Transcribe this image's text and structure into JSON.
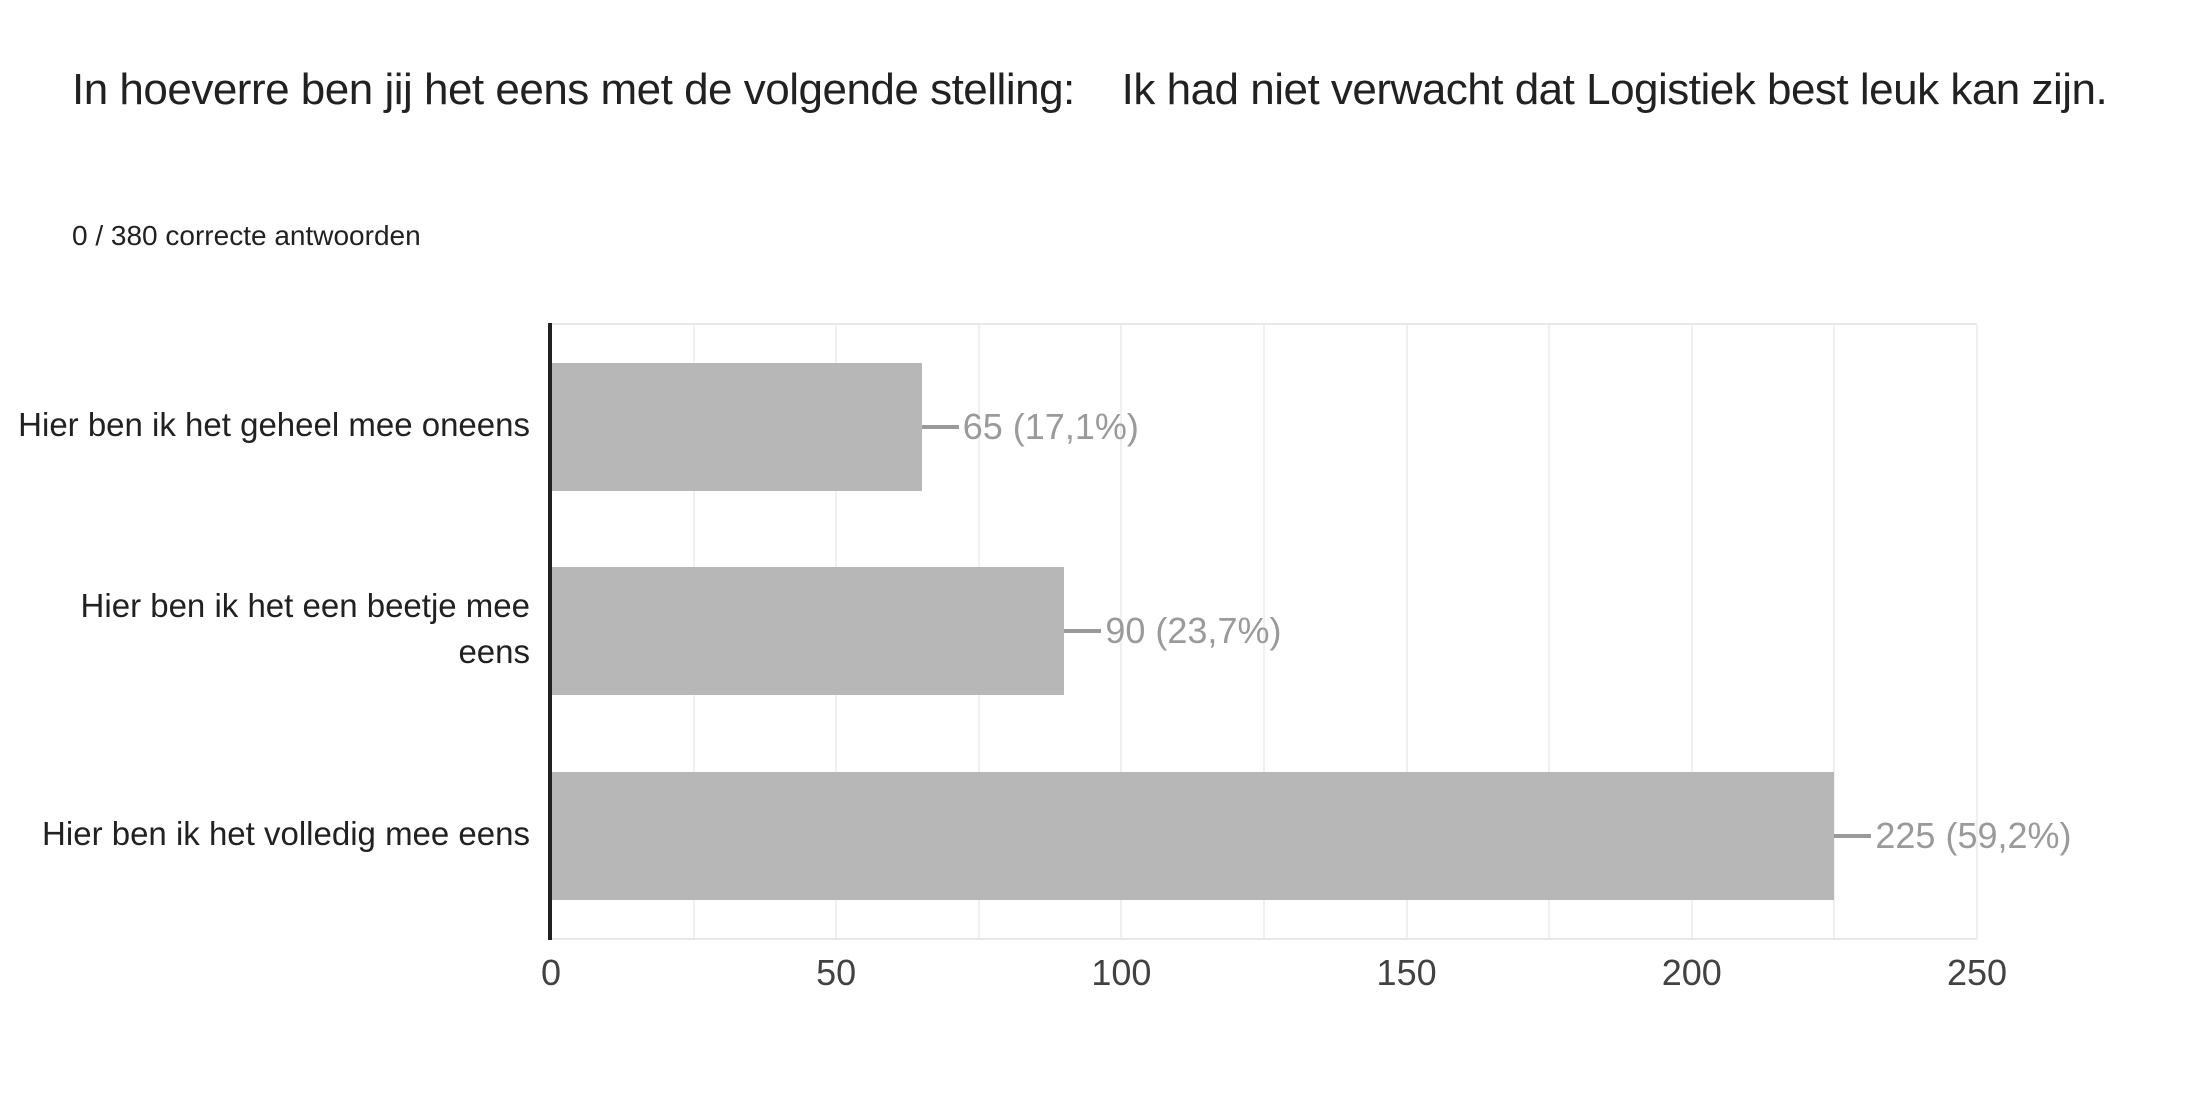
{
  "header": {
    "title": "In hoeverre ben jij het eens met de volgende stelling:    Ik had niet verwacht dat Logistiek best leuk kan zijn.",
    "subtitle": "0 / 380 correcte antwoorden"
  },
  "chart_data": {
    "type": "bar",
    "orientation": "horizontal",
    "title": "In hoeverre ben jij het eens met de volgende stelling:    Ik had niet verwacht dat Logistiek best leuk kan zijn.",
    "subtitle": "0 / 380 correcte antwoorden",
    "categories": [
      "Hier ben ik het geheel mee oneens",
      "Hier ben ik het een beetje mee eens",
      "Hier ben ik het volledig mee eens"
    ],
    "values": [
      90,
      225,
      65
    ],
    "value_labels": [
      "90 (23,7%)",
      "225 (59,2%)",
      "65 (17,1%)"
    ],
    "percentages": [
      23.7,
      59.2,
      17.1
    ],
    "total_responses": 380,
    "xlim": [
      0,
      250
    ],
    "ticks": [
      0,
      50,
      100,
      150,
      200,
      250
    ],
    "minor_grid_step": 25,
    "grid": true,
    "legend": "none",
    "colors": {
      "bar": "#b7b7b7",
      "value_label": "#9a9a9a",
      "axis_line": "#212121",
      "gridline": "#f0f0f0",
      "plot_border": "#e8e8e8",
      "text": "#212121",
      "tick_label": "#424242"
    }
  }
}
